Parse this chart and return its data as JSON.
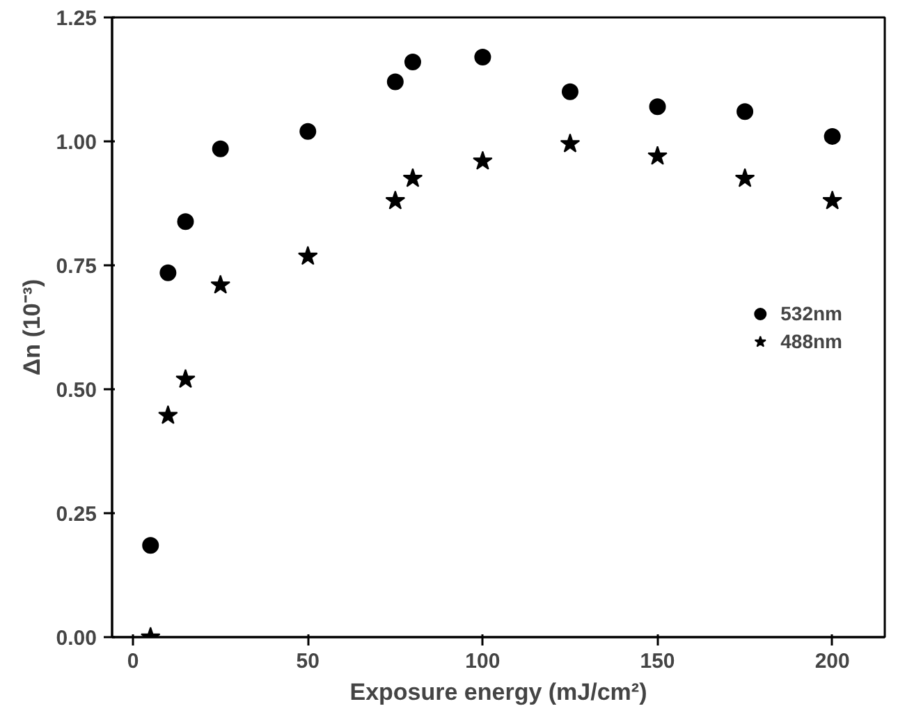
{
  "chart_data": {
    "type": "scatter",
    "xlabel": "Exposure energy (mJ/cm²)",
    "ylabel": "Δn (10⁻³)",
    "x": [
      5,
      10,
      15,
      25,
      50,
      75,
      80,
      100,
      125,
      150,
      175,
      200
    ],
    "series": [
      {
        "name": "532nm",
        "color": "#000000",
        "marker": "circle",
        "values": [
          0.185,
          0.735,
          0.838,
          0.985,
          1.02,
          1.12,
          1.16,
          1.17,
          1.1,
          1.07,
          1.06,
          1.01
        ]
      },
      {
        "name": "488nm",
        "color": "#000000",
        "marker": "star",
        "values": [
          0.0,
          0.447,
          0.52,
          0.71,
          0.768,
          0.88,
          0.925,
          0.96,
          0.995,
          0.97,
          0.925,
          0.88
        ]
      }
    ],
    "xlim": [
      -6,
      215
    ],
    "ylim": [
      0,
      1.25
    ],
    "xticks": [
      0,
      50,
      100,
      150,
      200
    ],
    "yticks": [
      {
        "value": 0,
        "label": "0.00"
      },
      {
        "value": 0.25,
        "label": "0.25"
      },
      {
        "value": 0.5,
        "label": "0.50"
      },
      {
        "value": 0.75,
        "label": "0.75"
      },
      {
        "value": 1.0,
        "label": "1.00"
      },
      {
        "value": 1.25,
        "label": "1.25"
      }
    ],
    "grid": false,
    "legend": "right"
  }
}
